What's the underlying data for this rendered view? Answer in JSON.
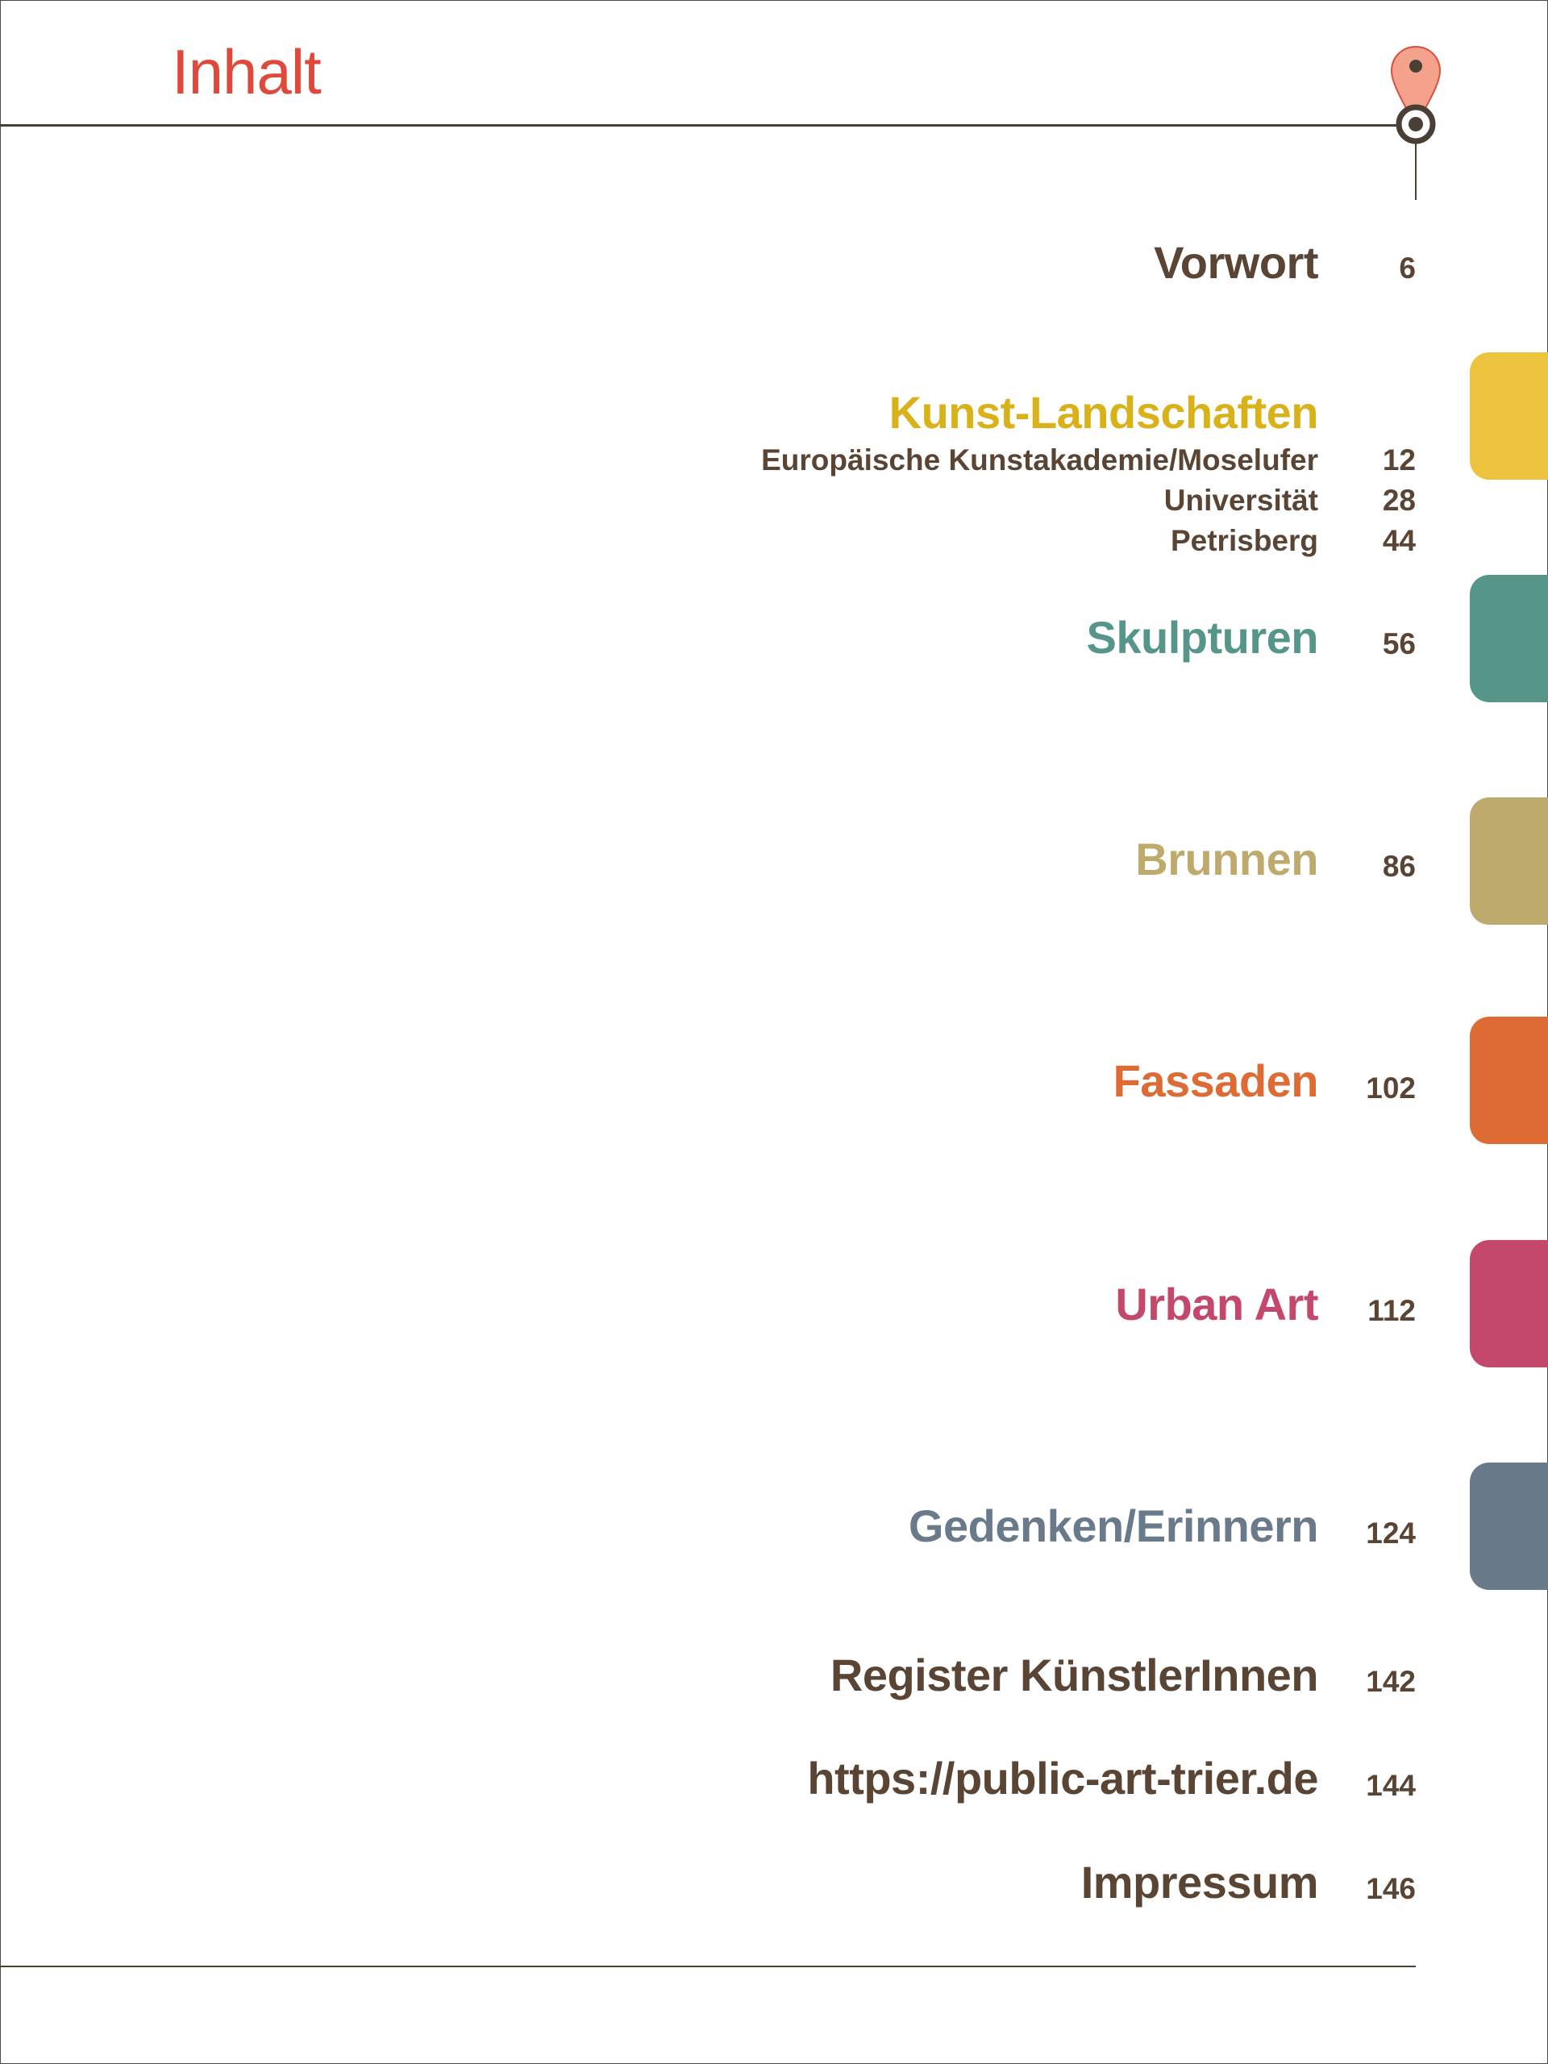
{
  "title": "Inhalt",
  "colors": {
    "title": "#e0483c",
    "text": "#5a4535",
    "pin_fill": "#f4a28c",
    "pin_stroke": "#d9503e",
    "pin_dark": "#4a3f35"
  },
  "entries": [
    {
      "title": "Vorwort",
      "page": "6",
      "color": "#5a4535"
    },
    {
      "title": "Kunst-Landschaften",
      "page": "",
      "color": "#d9b21a",
      "subentries": [
        {
          "title": "Europäische Kunstakademie/Moselufer",
          "page": "12"
        },
        {
          "title": "Universität",
          "page": "28"
        },
        {
          "title": "Petrisberg",
          "page": "44"
        }
      ]
    },
    {
      "title": "Skulpturen",
      "page": "56",
      "color": "#56968a"
    },
    {
      "title": "Brunnen",
      "page": "86",
      "color": "#bfaa6e"
    },
    {
      "title": "Fassaden",
      "page": "102",
      "color": "#de6a34"
    },
    {
      "title": "Urban Art",
      "page": "112",
      "color": "#c4476c"
    },
    {
      "title": "Gedenken/Erinnern",
      "page": "124",
      "color": "#697a8a"
    },
    {
      "title": "Register KünstlerInnen",
      "page": "142",
      "color": "#5a4535"
    },
    {
      "title": "https://public-art-trier.de",
      "page": "144",
      "color": "#5a4535"
    },
    {
      "title": "Impressum",
      "page": "146",
      "color": "#5a4535"
    }
  ],
  "tabs": [
    {
      "color": "#ebc33c"
    },
    {
      "color": "#56968a"
    },
    {
      "color": "#bfaa6e"
    },
    {
      "color": "#de6a34"
    },
    {
      "color": "#c4476c"
    },
    {
      "color": "#697a8a"
    }
  ]
}
